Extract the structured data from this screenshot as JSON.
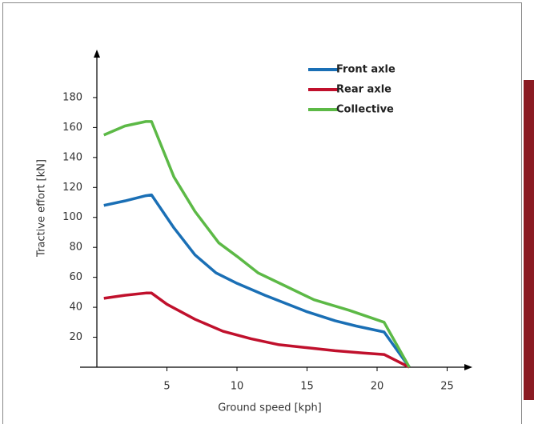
{
  "chart_data": {
    "type": "line",
    "x_label": "Ground speed [kph]",
    "y_label": "Tractive effort [kN]",
    "xlim": [
      -1.2,
      26.8
    ],
    "ylim": [
      0,
      212
    ],
    "xticks": [
      5,
      10,
      15,
      20,
      25
    ],
    "yticks": [
      20,
      40,
      60,
      80,
      100,
      120,
      140,
      160,
      180
    ],
    "series": [
      {
        "name": "Front axle",
        "color": "#1a6fb5",
        "x": [
          0.5,
          2,
          3.5,
          3.9,
          5.5,
          7,
          8.5,
          10,
          12,
          15,
          17,
          18.5,
          20.5,
          22.3
        ],
        "values": [
          108,
          111,
          114.5,
          115,
          93,
          75,
          63,
          56,
          48,
          37,
          31,
          27.5,
          23.5,
          0
        ]
      },
      {
        "name": "Rear axle",
        "color": "#c0102c",
        "x": [
          0.5,
          2,
          3.5,
          3.9,
          5,
          7,
          9,
          11,
          13,
          15,
          17,
          19,
          20.5,
          22.3
        ],
        "values": [
          46,
          48,
          49.5,
          49.5,
          42,
          32,
          24,
          19,
          15,
          13,
          11,
          9.5,
          8.5,
          0
        ]
      },
      {
        "name": "Collective",
        "color": "#5cb946",
        "x": [
          0.5,
          2,
          3.5,
          3.9,
          5.5,
          7,
          8.7,
          10,
          11.5,
          13.5,
          15.5,
          18,
          20.5,
          22.3
        ],
        "values": [
          155,
          161,
          164,
          164,
          127,
          104,
          83,
          74,
          63,
          54,
          45,
          38,
          30,
          0
        ]
      }
    ]
  }
}
